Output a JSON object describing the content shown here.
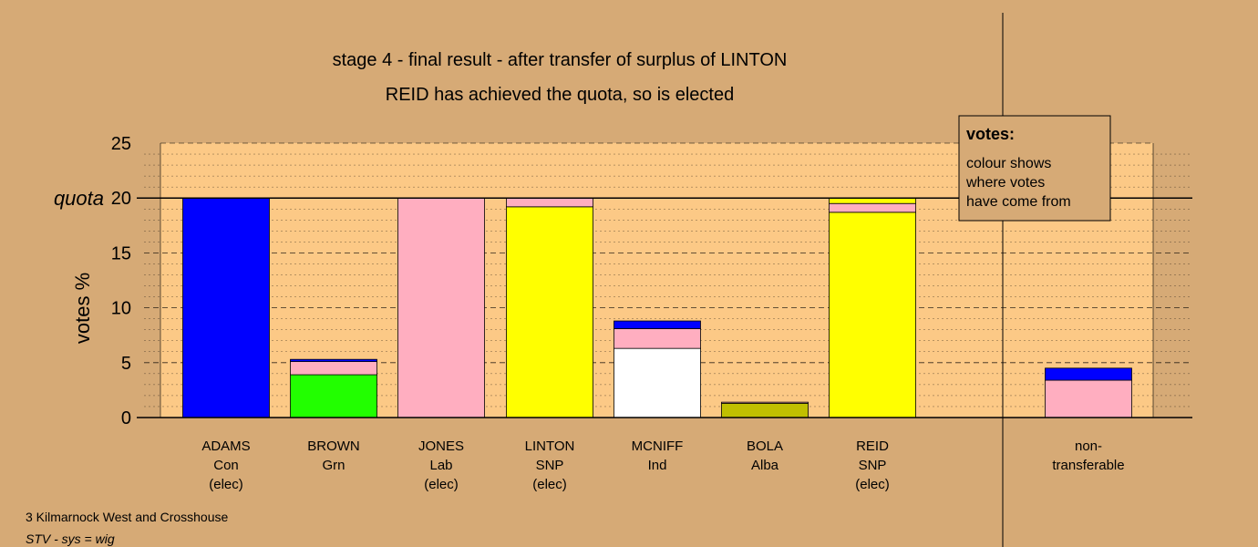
{
  "chart_data": {
    "type": "bar",
    "title": "stage 4 - final result - after transfer of surplus of LINTON",
    "subtitle": "REID has achieved the quota, so is elected",
    "ylabel": "votes %",
    "ylim": [
      0,
      25
    ],
    "yticks": [
      0,
      5,
      10,
      15,
      20,
      25
    ],
    "quota": 20,
    "quota_label": "quota",
    "grid": true,
    "legend_box": {
      "title": "votes:",
      "lines": [
        "colour shows",
        "where votes",
        "have come from"
      ],
      "position": "top-right"
    },
    "source_colors": {
      "Con": "#0000ff",
      "Grn": "#22ff00",
      "Lab": "#ffaec0",
      "SNP": "#ffff00",
      "Ind": "#ffffff",
      "Alba": "#c0c000"
    },
    "candidates": [
      {
        "name": "ADAMS",
        "party": "Con",
        "status": "(elec)",
        "segments": [
          {
            "from": "Con",
            "value": 20.0
          }
        ]
      },
      {
        "name": "BROWN",
        "party": "Grn",
        "status": "",
        "segments": [
          {
            "from": "Grn",
            "value": 3.9
          },
          {
            "from": "Lab",
            "value": 1.2
          },
          {
            "from": "Con",
            "value": 0.2
          }
        ]
      },
      {
        "name": "JONES",
        "party": "Lab",
        "status": "(elec)",
        "segments": [
          {
            "from": "Lab",
            "value": 20.0
          }
        ]
      },
      {
        "name": "LINTON",
        "party": "SNP",
        "status": "(elec)",
        "segments": [
          {
            "from": "SNP",
            "value": 19.2
          },
          {
            "from": "Lab",
            "value": 0.8
          }
        ]
      },
      {
        "name": "MCNIFF",
        "party": "Ind",
        "status": "",
        "segments": [
          {
            "from": "Ind",
            "value": 6.3
          },
          {
            "from": "Lab",
            "value": 1.8
          },
          {
            "from": "Con",
            "value": 0.7
          }
        ]
      },
      {
        "name": "BOLA",
        "party": "Alba",
        "status": "",
        "segments": [
          {
            "from": "Alba",
            "value": 1.3
          },
          {
            "from": "Lab",
            "value": 0.1
          }
        ]
      },
      {
        "name": "REID",
        "party": "SNP",
        "status": "(elec)",
        "segments": [
          {
            "from": "SNP",
            "value": 18.7
          },
          {
            "from": "Lab",
            "value": 0.8
          },
          {
            "from": "SNP",
            "value": 0.5
          }
        ]
      }
    ],
    "non_transferable": {
      "label_lines": [
        "non-",
        "transferable"
      ],
      "segments": [
        {
          "from": "Lab",
          "value": 3.4
        },
        {
          "from": "Con",
          "value": 1.1
        }
      ]
    }
  },
  "footer": {
    "ward": "3 Kilmarnock West and Crosshouse",
    "system": "STV - sys = wig"
  }
}
